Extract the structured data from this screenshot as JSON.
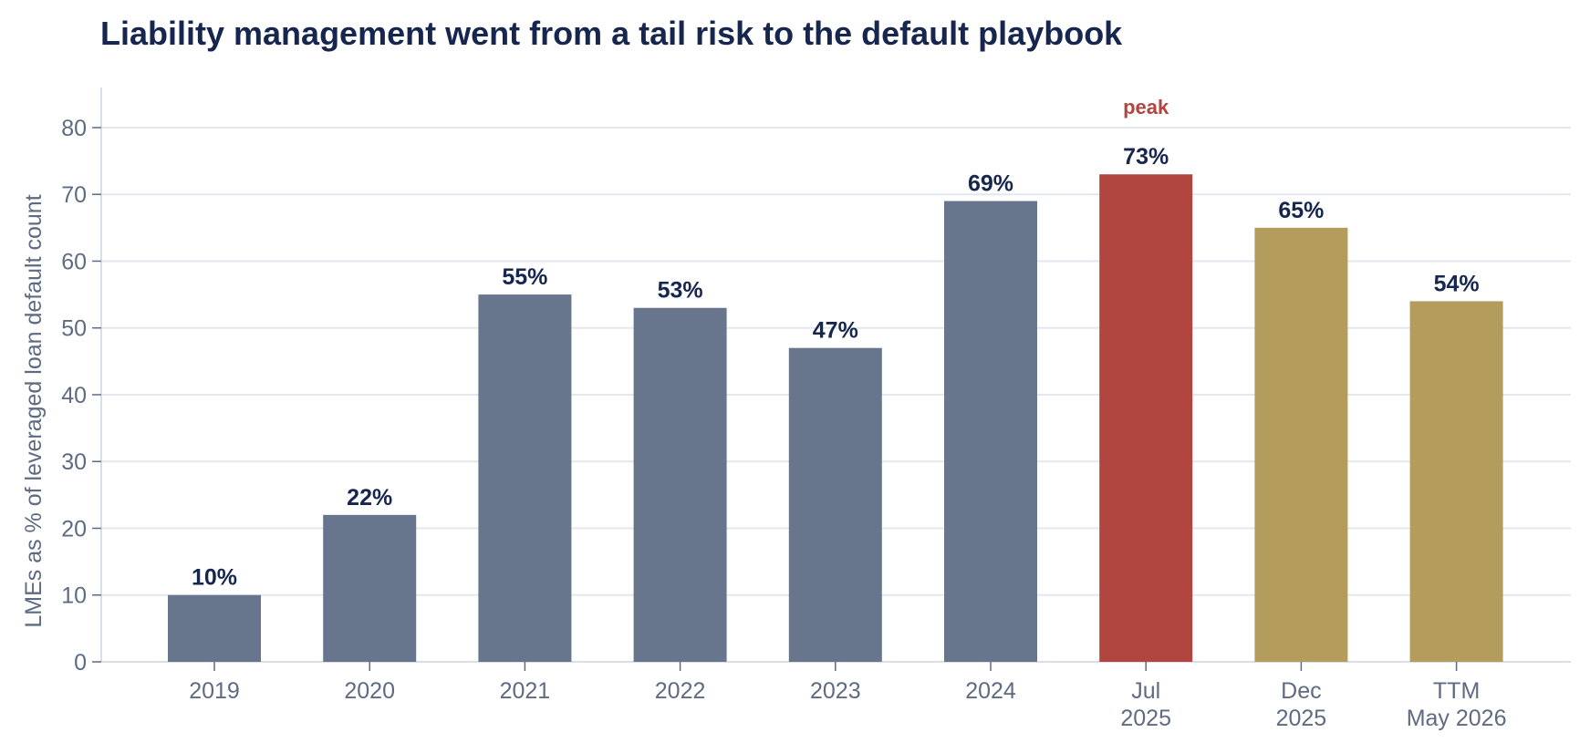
{
  "chart_data": {
    "type": "bar",
    "title": "Liability management went from a tail risk to the default playbook",
    "xlabel": "",
    "ylabel": "LMEs as % of leveraged loan default count",
    "ylim": [
      0,
      86
    ],
    "yticks": [
      0,
      10,
      20,
      30,
      40,
      50,
      60,
      70,
      80
    ],
    "grid": "horizontal",
    "categories": [
      [
        "2019"
      ],
      [
        "2020"
      ],
      [
        "2021"
      ],
      [
        "2022"
      ],
      [
        "2023"
      ],
      [
        "2024"
      ],
      [
        "Jul",
        "2025"
      ],
      [
        "Dec",
        "2025"
      ],
      [
        "TTM",
        "May 2026"
      ]
    ],
    "values": [
      10,
      22,
      55,
      53,
      47,
      69,
      73,
      65,
      54
    ],
    "value_labels": [
      "10%",
      "22%",
      "55%",
      "53%",
      "47%",
      "69%",
      "73%",
      "65%",
      "54%"
    ],
    "bar_colors": [
      "#67768d",
      "#67768d",
      "#67768d",
      "#67768d",
      "#67768d",
      "#67768d",
      "#b0463f",
      "#b49d5c",
      "#b49d5c"
    ],
    "annotations": [
      {
        "category_index": 6,
        "text": "peak",
        "color": "#b0463f"
      }
    ]
  }
}
